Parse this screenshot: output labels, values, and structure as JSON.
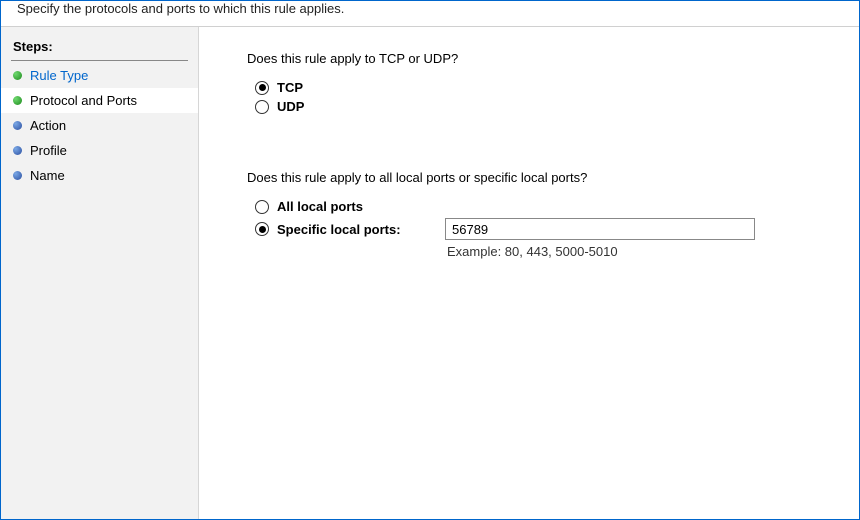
{
  "header": {
    "subtitle": "Specify the protocols and ports to which this rule applies."
  },
  "sidebar": {
    "heading": "Steps:",
    "items": [
      {
        "label": "Rule Type",
        "bullet": "green",
        "link": true,
        "selected": false
      },
      {
        "label": "Protocol and Ports",
        "bullet": "green",
        "link": false,
        "selected": true
      },
      {
        "label": "Action",
        "bullet": "blue",
        "link": false,
        "selected": false
      },
      {
        "label": "Profile",
        "bullet": "blue",
        "link": false,
        "selected": false
      },
      {
        "label": "Name",
        "bullet": "blue",
        "link": false,
        "selected": false
      }
    ]
  },
  "content": {
    "protocol_question": "Does this rule apply to TCP or UDP?",
    "protocol_options": {
      "tcp": "TCP",
      "udp": "UDP",
      "selected": "tcp"
    },
    "ports_question": "Does this rule apply to all local ports or specific local ports?",
    "ports_options": {
      "all": "All local ports",
      "specific": "Specific local ports:",
      "selected": "specific",
      "value": "56789",
      "example": "Example: 80, 443, 5000-5010"
    }
  },
  "colors": {
    "border": "#0066cc",
    "sidebar_bg": "#f2f2f2",
    "link": "#0066cc"
  }
}
